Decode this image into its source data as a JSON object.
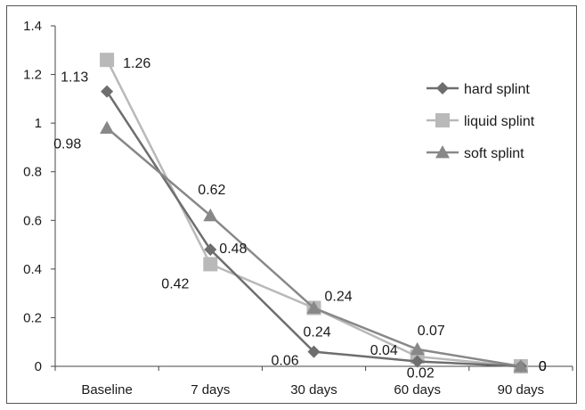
{
  "chart_data": {
    "type": "line",
    "title": "",
    "xlabel": "",
    "ylabel": "",
    "categories": [
      "Baseline",
      "7 days",
      "30 days",
      "60 days",
      "90 days"
    ],
    "ylim": [
      0,
      1.4
    ],
    "yticks": [
      "0",
      "0.2",
      "0.4",
      "0.6",
      "0.8",
      "1",
      "1.2",
      "1.4"
    ],
    "grid": false,
    "legend_position": "right",
    "series": [
      {
        "name": "hard splint",
        "marker": "diamond",
        "color": "#6e6e6e",
        "values": [
          1.13,
          0.48,
          0.06,
          0.02,
          0
        ],
        "labels": [
          "1.13",
          "0.48",
          "0.06",
          "0.02",
          "0"
        ]
      },
      {
        "name": "liquid splint",
        "marker": "square",
        "color": "#b9b9b9",
        "values": [
          1.26,
          0.42,
          0.24,
          0.04,
          0
        ],
        "labels": [
          "1.26",
          "0.42",
          "0.24",
          "0.04",
          "0"
        ]
      },
      {
        "name": "soft splint",
        "marker": "triangle",
        "color": "#888888",
        "values": [
          0.98,
          0.62,
          0.24,
          0.07,
          0
        ],
        "labels": [
          "0.98",
          "0.62",
          "0.24",
          "0.07",
          "0"
        ]
      }
    ]
  }
}
